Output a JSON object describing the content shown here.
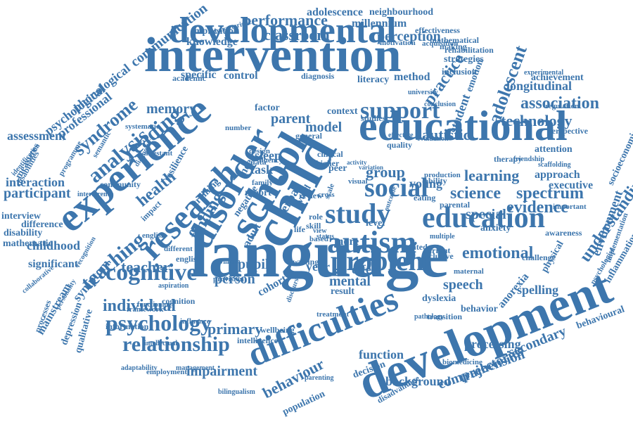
{
  "colors": {
    "word": "#3d76ad",
    "background": "#ffffff"
  },
  "words": [
    "language",
    "development",
    "child",
    "intervention",
    "developmental",
    "educational",
    "school",
    "experience",
    "disorder",
    "difficulties",
    "research",
    "autism",
    "problem",
    "education",
    "social",
    "study",
    "support",
    "cognitive",
    "psychology",
    "relationship",
    "teaching",
    "syndrome",
    "analysis",
    "reading",
    "health",
    "adolescent",
    "science",
    "spectrum",
    "emotional",
    "learning",
    "technology",
    "association",
    "understanding",
    "behaviour",
    "impairment",
    "classroom",
    "performance",
    "communication",
    "psychological",
    "phonological",
    "professional",
    "interaction",
    "participant",
    "assessment",
    "childhood",
    "memory",
    "teacher",
    "individual",
    "parent",
    "autistic",
    "group",
    "primary",
    "pupil",
    "person",
    "mental",
    "effect",
    "year",
    "evidence",
    "speech",
    "approach",
    "executive",
    "longitudinal",
    "processing",
    "secondary",
    "comprehension",
    "trajectories",
    "background",
    "population",
    "function",
    "decision",
    "adolescence",
    "neighbourhood",
    "millennium",
    "knowledge",
    "perception",
    "implication",
    "specific",
    "control",
    "method",
    "practice",
    "student",
    "sleep",
    "young",
    "special",
    "spelling",
    "anorexia",
    "behavior",
    "dyslexia",
    "result",
    "cohort",
    "writing",
    "english",
    "finding",
    "symptom",
    "mainstream",
    "depression",
    "qualitative",
    "information",
    "employment",
    "bilingualism",
    "inclusive",
    "inclusion",
    "regulation",
    "achievement",
    "attention",
    "environment",
    "inflammation",
    "behavioural",
    "awareness",
    "challenge",
    "anxiety",
    "physical",
    "transition",
    "disability",
    "mathematic",
    "significant",
    "difference",
    "interview",
    "measures",
    "disabilities",
    "identification",
    "collaborative",
    "processes",
    "strategies",
    "making",
    "mathematical",
    "rehabilitation",
    "effectiveness",
    "experimental",
    "perspective",
    "socioeconomic",
    "psychologist",
    "implementation",
    "important",
    "parental",
    "quality",
    "eating",
    "level",
    "adult",
    "related",
    "current",
    "model",
    "factor",
    "studies",
    "context",
    "literacy",
    "diagnosis",
    "academic",
    "systematic",
    "semantic",
    "programme",
    "community",
    "assistant",
    "resilience",
    "training",
    "impact",
    "different",
    "provision",
    "william",
    "influence",
    "intellectual",
    "adaptability",
    "management",
    "intelligence",
    "wellbeing",
    "treatment",
    "negative",
    "report",
    "task",
    "need",
    "data",
    "family",
    "review",
    "verbal",
    "word",
    "skill",
    "role",
    "life",
    "based",
    "more",
    "cross",
    "scale",
    "visual",
    "ability",
    "motivation",
    "acquisition",
    "diagnostic",
    "characteristic",
    "emotion",
    "therapy",
    "friendship",
    "scaffolding",
    "conclusion",
    "cognition",
    "framework",
    "functioning",
    "aspiration",
    "personality",
    "recognition",
    "interference",
    "english",
    "clinical",
    "higher",
    "peer",
    "general",
    "design",
    "fluency",
    "number",
    "effective",
    "evaluation",
    "production",
    "pathology",
    "maternal",
    "multiple",
    "university",
    "biomedicine",
    "disadvantage",
    "parenting",
    "discourse",
    "outcome",
    "status",
    "view",
    "activity",
    "variation"
  ]
}
